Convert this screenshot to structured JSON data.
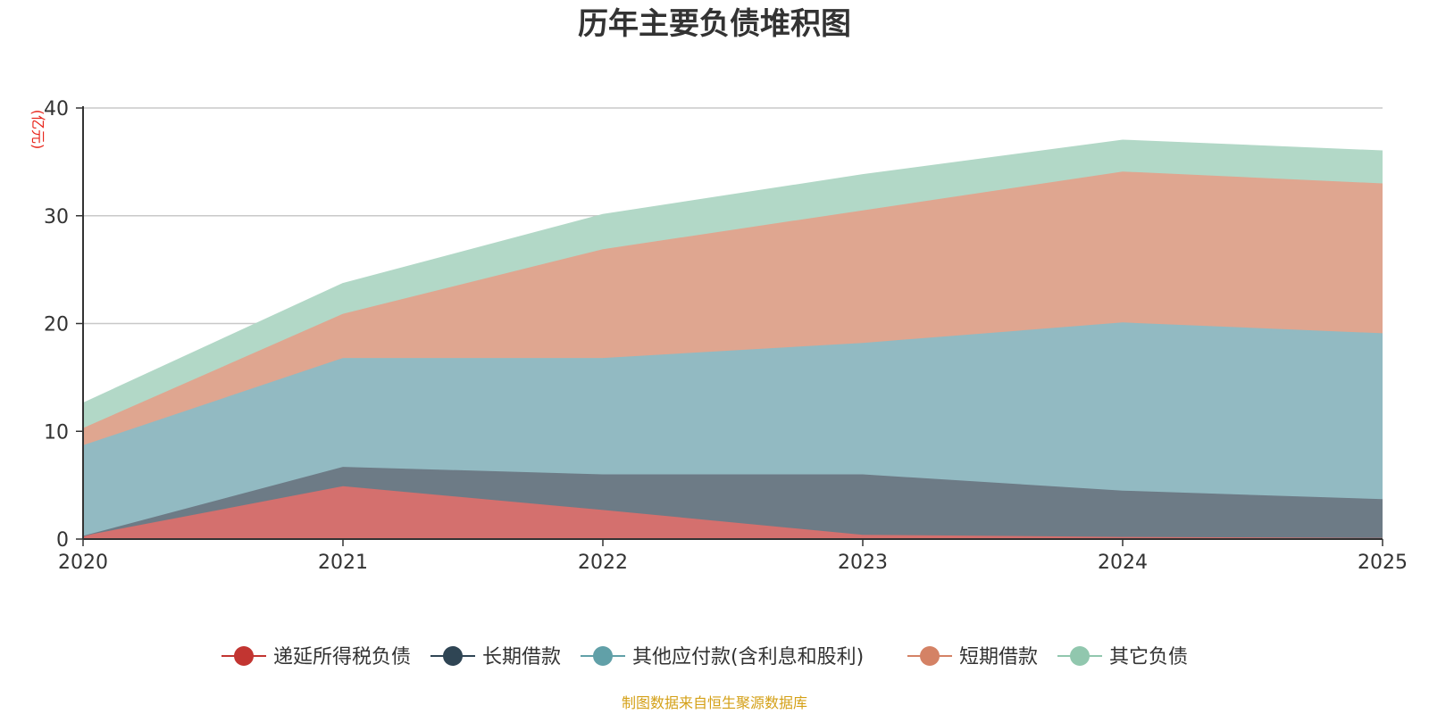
{
  "chart_data": {
    "type": "area",
    "stacked": true,
    "title": "历年主要负债堆积图",
    "ylabel": "(亿元)",
    "xlabel": "",
    "x": [
      "2020",
      "2021",
      "2022",
      "2023",
      "2024",
      "2025"
    ],
    "ylim": [
      0,
      40
    ],
    "yticks": [
      "0",
      "10",
      "20",
      "30",
      "40"
    ],
    "grid": true,
    "legend_position": "bottom",
    "series": [
      {
        "name": "递延所得税负债",
        "color": "#c23531",
        "fill": "#d4706e",
        "values": [
          0.3,
          4.9,
          2.7,
          0.4,
          0.2,
          0.1
        ]
      },
      {
        "name": "长期借款",
        "color": "#2f4554",
        "fill": "#6d7b86",
        "values": [
          0.0,
          1.8,
          3.3,
          5.6,
          4.3,
          3.6
        ]
      },
      {
        "name": "其他应付款(含利息和股利)",
        "color": "#61a0a8",
        "fill": "#92bac2",
        "values": [
          8.4,
          10.1,
          10.8,
          12.2,
          15.6,
          15.4
        ]
      },
      {
        "name": "短期借款",
        "color": "#d48265",
        "fill": "#dfa690",
        "values": [
          1.6,
          4.1,
          10.1,
          12.3,
          14.0,
          13.9
        ]
      },
      {
        "name": "其它负债",
        "color": "#91c7ae",
        "fill": "#b2d8c7",
        "values": [
          2.3,
          2.8,
          3.2,
          3.3,
          2.9,
          3.0
        ]
      }
    ],
    "source": "制图数据来自恒生聚源数据库"
  }
}
